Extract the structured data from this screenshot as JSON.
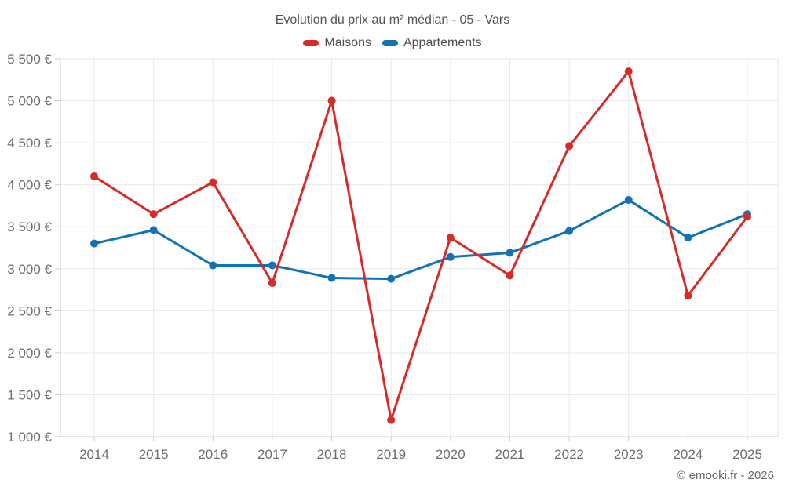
{
  "title": "Evolution du prix au m² médian - 05 - Vars",
  "watermark": "© emooki.fr - 2026",
  "colors": {
    "maisons": "#d62c29",
    "appartements": "#1273b2",
    "grid": "#e9e9e9",
    "axis": "#cccccc",
    "tick_text": "#6e6e6e",
    "title_text": "#545454"
  },
  "chart_data": {
    "type": "line",
    "title": "Evolution du prix au m² médian - 05 - Vars",
    "categories": [
      "2014",
      "2015",
      "2016",
      "2017",
      "2018",
      "2019",
      "2020",
      "2021",
      "2022",
      "2023",
      "2024",
      "2025"
    ],
    "series": [
      {
        "name": "Maisons",
        "color": "#d62c29",
        "values": [
          4100,
          3650,
          4030,
          2830,
          5000,
          1200,
          3370,
          2920,
          4460,
          5350,
          2680,
          3620
        ]
      },
      {
        "name": "Appartements",
        "color": "#1273b2",
        "values": [
          3300,
          3460,
          3040,
          3040,
          2890,
          2880,
          3140,
          3190,
          3450,
          3820,
          3370,
          3650
        ]
      }
    ],
    "xlabel": "",
    "ylabel": "",
    "ylim": [
      1000,
      5500
    ],
    "ytick_step": 500,
    "ytick_labels": [
      "1 000 €",
      "1 500 €",
      "2 000 €",
      "2 500 €",
      "3 000 €",
      "3 500 €",
      "4 000 €",
      "4 500 €",
      "5 000 €",
      "5 500 €"
    ],
    "grid": true,
    "legend_position": "top"
  }
}
